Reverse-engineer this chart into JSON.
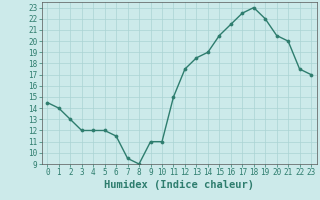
{
  "xlabel": "Humidex (Indice chaleur)",
  "ylabel": "",
  "x": [
    0,
    1,
    2,
    3,
    4,
    5,
    6,
    7,
    8,
    9,
    10,
    11,
    12,
    13,
    14,
    15,
    16,
    17,
    18,
    19,
    20,
    21,
    22,
    23
  ],
  "y": [
    14.5,
    14.0,
    13.0,
    12.0,
    12.0,
    12.0,
    11.5,
    9.5,
    9.0,
    11.0,
    11.0,
    15.0,
    17.5,
    18.5,
    19.0,
    20.5,
    21.5,
    22.5,
    23.0,
    22.0,
    20.5,
    20.0,
    17.5,
    17.0
  ],
  "line_color": "#2e7d6e",
  "marker_color": "#2e7d6e",
  "bg_color": "#cceaea",
  "grid_color": "#aad4d4",
  "xlim": [
    -0.5,
    23.5
  ],
  "ylim": [
    9,
    23.5
  ],
  "yticks": [
    9,
    10,
    11,
    12,
    13,
    14,
    15,
    16,
    17,
    18,
    19,
    20,
    21,
    22,
    23
  ],
  "xticks": [
    0,
    1,
    2,
    3,
    4,
    5,
    6,
    7,
    8,
    9,
    10,
    11,
    12,
    13,
    14,
    15,
    16,
    17,
    18,
    19,
    20,
    21,
    22,
    23
  ],
  "tick_label_fontsize": 5.5,
  "xlabel_fontsize": 7.5,
  "tick_color": "#2e7d6e",
  "label_color": "#2e7d6e"
}
